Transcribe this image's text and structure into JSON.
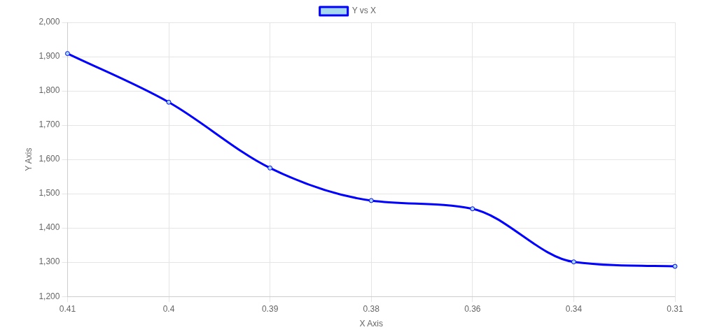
{
  "chart_data": {
    "type": "line",
    "xlabel": "X Axis",
    "ylabel": "Y Axis",
    "categories": [
      "0.41",
      "0.4",
      "0.39",
      "0.38",
      "0.36",
      "0.34",
      "0.31"
    ],
    "series": [
      {
        "name": "Y vs X",
        "color": "#0000ff",
        "values": [
          1909,
          1767,
          1575,
          1480,
          1456,
          1301,
          1288
        ]
      }
    ],
    "ylim": [
      1200,
      2000
    ],
    "yticks": [
      {
        "value": 1200,
        "label": "1,200"
      },
      {
        "value": 1300,
        "label": "1,300"
      },
      {
        "value": 1400,
        "label": "1,400"
      },
      {
        "value": 1500,
        "label": "1,500"
      },
      {
        "value": 1600,
        "label": "1,600"
      },
      {
        "value": 1700,
        "label": "1,700"
      },
      {
        "value": 1800,
        "label": "1,800"
      },
      {
        "value": 1900,
        "label": "1,900"
      },
      {
        "value": 2000,
        "label": "2,000"
      }
    ],
    "grid": true,
    "legend": "top",
    "marker": "circle",
    "line_style": "solid"
  }
}
